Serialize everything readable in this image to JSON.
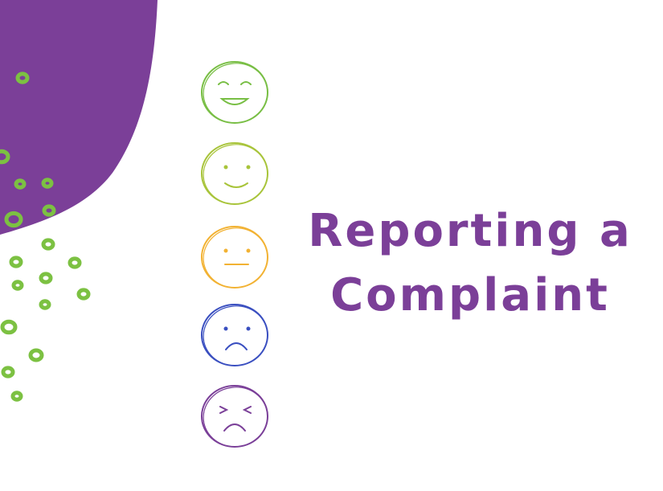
{
  "slide": {
    "title_lines": [
      "Reporting a",
      "Complaint"
    ]
  },
  "colors": {
    "brand_purple": "#7b3f98",
    "dot_green": "#7cc142",
    "face_very_happy": "#78be44",
    "face_happy": "#a8c43a",
    "face_neutral": "#f2b233",
    "face_sad": "#3a4fc0",
    "face_angry": "#7a3f98"
  },
  "faces": [
    {
      "icon": "laughing-face-icon",
      "mood": "very satisfied"
    },
    {
      "icon": "smiling-face-icon",
      "mood": "satisfied"
    },
    {
      "icon": "neutral-face-icon",
      "mood": "neutral"
    },
    {
      "icon": "frowning-face-icon",
      "mood": "dissatisfied"
    },
    {
      "icon": "angry-face-icon",
      "mood": "very dissatisfied"
    }
  ]
}
